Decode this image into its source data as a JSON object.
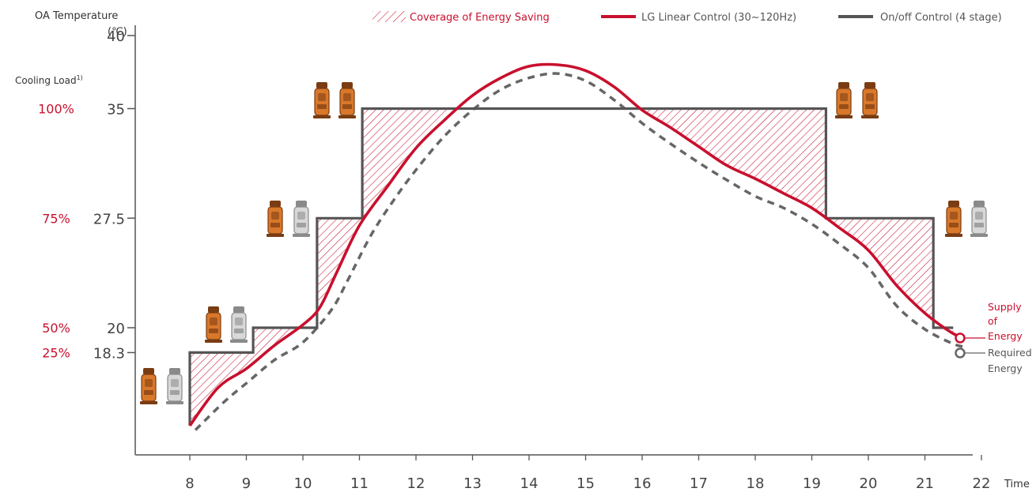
{
  "chart_data": {
    "type": "line",
    "y_axis_title_line1": "OA Temperature",
    "y_axis_title_line2": "(℃)",
    "load_axis_title": "Cooling Load",
    "load_axis_footnote": "1)",
    "x_axis_label": "Time",
    "legend": {
      "coverage": "Coverage of Energy Saving",
      "linear": "LG Linear Control (30~120Hz)",
      "onoff": "On/off Control (4 stage)"
    },
    "x_ticks": [
      8,
      9,
      10,
      11,
      12,
      13,
      14,
      15,
      16,
      17,
      18,
      19,
      20,
      21,
      22
    ],
    "xlim": [
      7.05,
      22.0
    ],
    "ylim": [
      12.5,
      41.0
    ],
    "y_ticks": [
      {
        "value": 40,
        "label": "40",
        "load": ""
      },
      {
        "value": 35,
        "label": "35",
        "load": "100%"
      },
      {
        "value": 27.5,
        "label": "27.5",
        "load": "75%"
      },
      {
        "value": 20,
        "label": "20",
        "load": "50%"
      },
      {
        "value": 18.3,
        "label": "18.3",
        "load": "25%"
      }
    ],
    "series": [
      {
        "name": "LG Linear Control (30~120Hz)",
        "color": "#c8102e",
        "points": [
          [
            8,
            13.3
          ],
          [
            8.5,
            15.9
          ],
          [
            9,
            17.2
          ],
          [
            9.5,
            18.8
          ],
          [
            10,
            20.2
          ],
          [
            10.3,
            21.4
          ],
          [
            10.6,
            23.8
          ],
          [
            11,
            27.0
          ],
          [
            11.5,
            29.7
          ],
          [
            12,
            32.3
          ],
          [
            12.5,
            34.2
          ],
          [
            13,
            35.9
          ],
          [
            13.5,
            37.1
          ],
          [
            14,
            37.9
          ],
          [
            14.5,
            38.0
          ],
          [
            15,
            37.6
          ],
          [
            15.5,
            36.5
          ],
          [
            16,
            34.9
          ],
          [
            16.5,
            33.7
          ],
          [
            17,
            32.4
          ],
          [
            17.5,
            31.1
          ],
          [
            18,
            30.2
          ],
          [
            18.5,
            29.2
          ],
          [
            19,
            28.2
          ],
          [
            19.5,
            26.8
          ],
          [
            20,
            25.3
          ],
          [
            20.5,
            22.9
          ],
          [
            21,
            21.0
          ],
          [
            21.5,
            19.6
          ],
          [
            21.7,
            19.4
          ]
        ]
      },
      {
        "name": "On/off Control (4 stage)",
        "color": "#555555",
        "points": [
          [
            8,
            13.3
          ],
          [
            8,
            18.3
          ],
          [
            9.12,
            18.3
          ],
          [
            9.12,
            20.0
          ],
          [
            10.25,
            20.0
          ],
          [
            10.25,
            27.5
          ],
          [
            11.05,
            27.5
          ],
          [
            11.05,
            35.0
          ],
          [
            19.25,
            35.0
          ],
          [
            19.25,
            27.5
          ],
          [
            21.15,
            27.5
          ],
          [
            21.15,
            20.0
          ],
          [
            21.5,
            20.0
          ]
        ]
      },
      {
        "name": "Required Energy",
        "color": "#666666",
        "dashed": true,
        "points": [
          [
            8.1,
            13.0
          ],
          [
            8.6,
            14.9
          ],
          [
            9,
            16.2
          ],
          [
            9.5,
            17.8
          ],
          [
            10,
            19.0
          ],
          [
            10.5,
            21.2
          ],
          [
            10.8,
            23.3
          ],
          [
            11.2,
            26.3
          ],
          [
            11.6,
            28.7
          ],
          [
            12,
            30.8
          ],
          [
            12.5,
            33.1
          ],
          [
            13,
            34.9
          ],
          [
            13.5,
            36.3
          ],
          [
            14,
            37.1
          ],
          [
            14.5,
            37.4
          ],
          [
            15,
            36.9
          ],
          [
            15.5,
            35.6
          ],
          [
            16,
            34.0
          ],
          [
            16.5,
            32.6
          ],
          [
            17,
            31.3
          ],
          [
            17.5,
            30.1
          ],
          [
            18,
            29.0
          ],
          [
            18.5,
            28.2
          ],
          [
            19,
            27.1
          ],
          [
            19.5,
            25.7
          ],
          [
            20,
            24.1
          ],
          [
            20.5,
            21.5
          ],
          [
            21,
            19.9
          ],
          [
            21.5,
            18.9
          ],
          [
            21.7,
            18.7
          ]
        ]
      }
    ],
    "end_labels": {
      "supply": [
        "Supply",
        "of",
        "Energy"
      ],
      "required": [
        "Required",
        "Energy"
      ]
    }
  }
}
